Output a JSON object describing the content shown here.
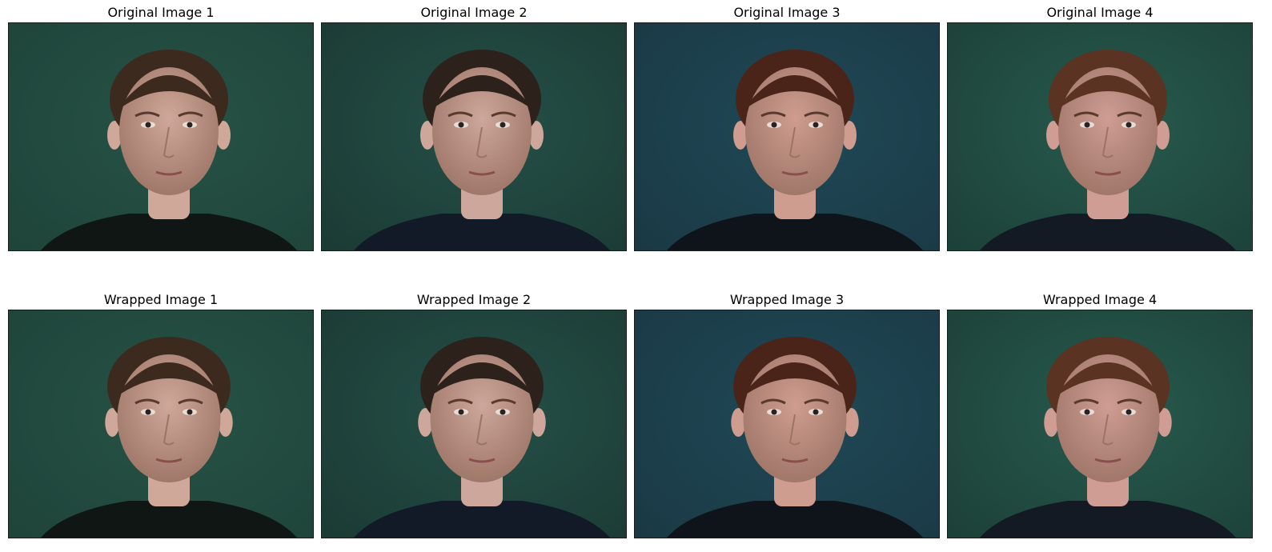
{
  "panels": [
    {
      "title": "Original Image 1",
      "row": 0,
      "col": 0,
      "hair": "#3d2a1e",
      "skin": "#cfa89a",
      "shirt": "#0f1614",
      "bg": "#1f443a",
      "bg2": "#275346"
    },
    {
      "title": "Original Image 2",
      "row": 0,
      "col": 1,
      "hair": "#2c221b",
      "skin": "#cda79b",
      "shirt": "#121a28",
      "bg": "#1b3b35",
      "bg2": "#255047"
    },
    {
      "title": "Original Image 3",
      "row": 0,
      "col": 2,
      "hair": "#4a2418",
      "skin": "#cf9d8f",
      "shirt": "#0f141a",
      "bg": "#1a3945",
      "bg2": "#204956"
    },
    {
      "title": "Original Image 4",
      "row": 0,
      "col": 3,
      "hair": "#5a3322",
      "skin": "#cf9d93",
      "shirt": "#141a24",
      "bg": "#1c4139",
      "bg2": "#285a4d"
    },
    {
      "title": "Wrapped Image 1",
      "row": 1,
      "col": 0,
      "hair": "#3d2a1e",
      "skin": "#cfa89a",
      "shirt": "#0f1614",
      "bg": "#1f443a",
      "bg2": "#275346"
    },
    {
      "title": "Wrapped Image 2",
      "row": 1,
      "col": 1,
      "hair": "#2c221b",
      "skin": "#cda79b",
      "shirt": "#121a28",
      "bg": "#1b3b35",
      "bg2": "#255047"
    },
    {
      "title": "Wrapped Image 3",
      "row": 1,
      "col": 2,
      "hair": "#4a2418",
      "skin": "#cf9d8f",
      "shirt": "#0f141a",
      "bg": "#1a3945",
      "bg2": "#204956"
    },
    {
      "title": "Wrapped Image 4",
      "row": 1,
      "col": 3,
      "hair": "#5a3322",
      "skin": "#cf9d93",
      "shirt": "#141a24",
      "bg": "#1c4139",
      "bg2": "#285a4d"
    }
  ]
}
